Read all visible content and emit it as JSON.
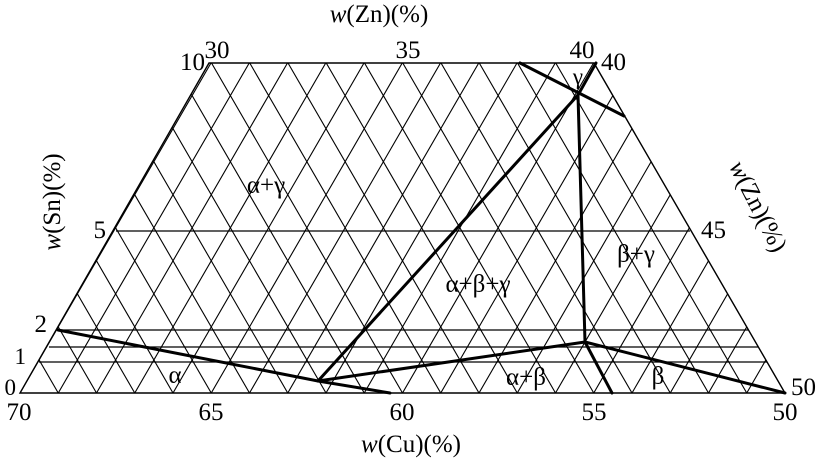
{
  "axes": {
    "top_title": "w(Zn)(%)",
    "right_title": "w(Zn)(%)",
    "left_title": "w(Sn)(%)",
    "bottom_title": "w(Cu)(%)",
    "top_ticks": [
      "30",
      "35",
      "40"
    ],
    "right_ticks": [
      "40",
      "45",
      "50"
    ],
    "left_ticks": [
      "10",
      "5",
      "2",
      "1",
      "0"
    ],
    "bottom_ticks": [
      "70",
      "65",
      "60",
      "55",
      "50"
    ]
  },
  "regions": {
    "alpha_gamma": "α+γ",
    "alpha_beta_gamma": "α+β+γ",
    "beta_gamma": "β+γ",
    "alpha": "α",
    "alpha_beta": "α+β",
    "beta": "β",
    "gamma": "γ"
  }
}
